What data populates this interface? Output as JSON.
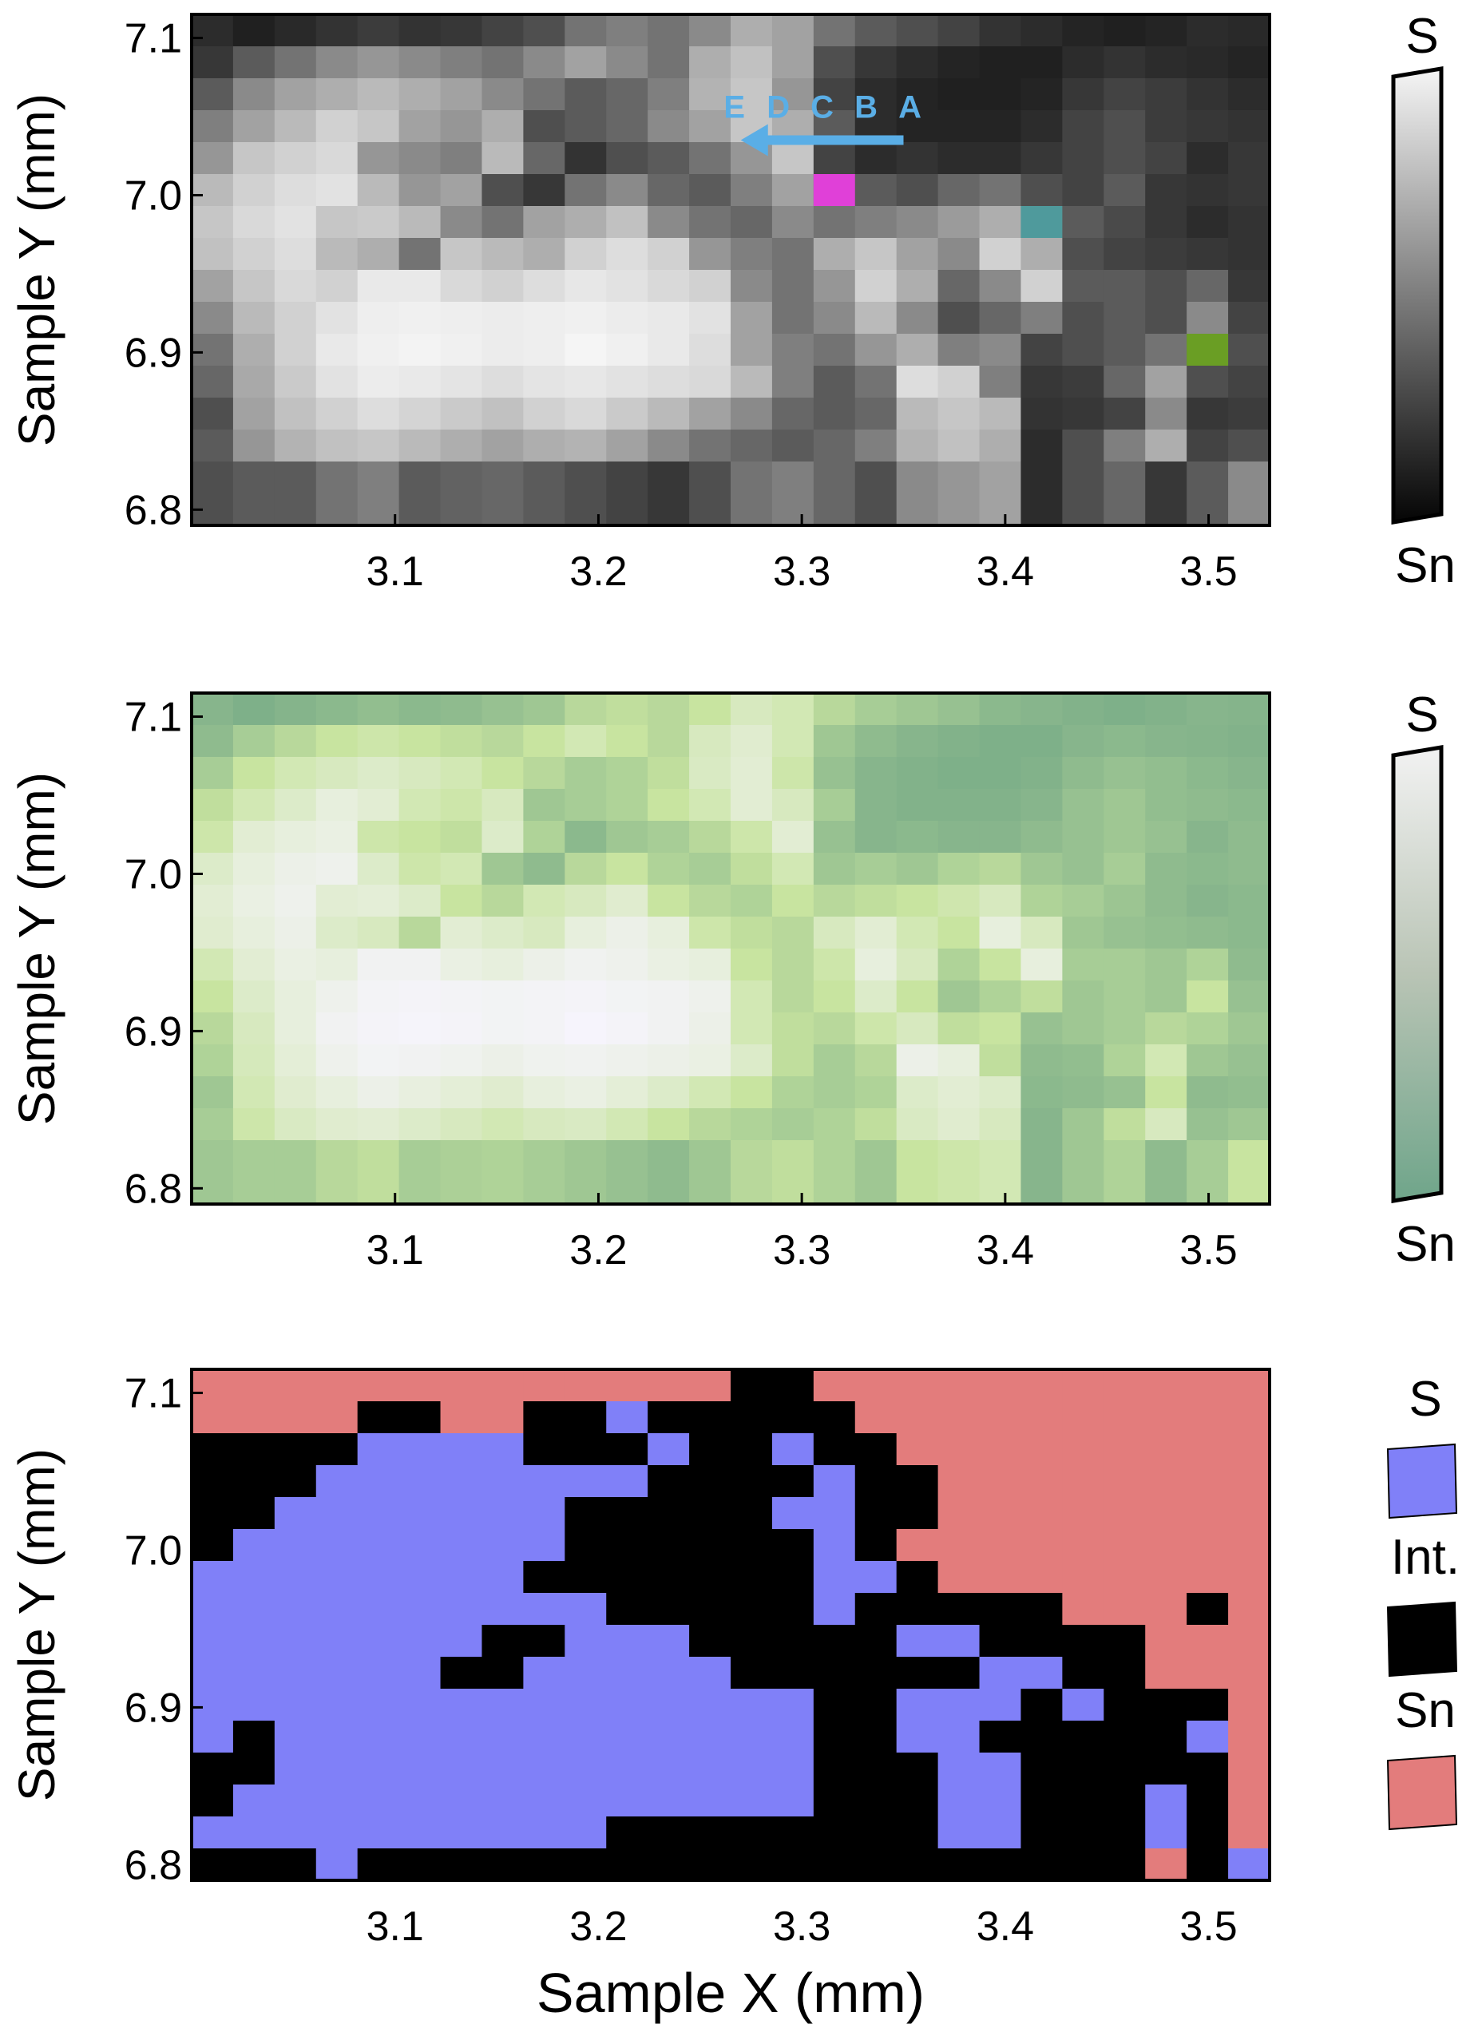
{
  "chart_data": [
    {
      "type": "heatmap",
      "title": "",
      "xlabel": "",
      "ylabel": "Sample Y (mm)",
      "xlim": [
        3.0,
        3.53
      ],
      "ylim": [
        6.79,
        7.115
      ],
      "xticks": [
        "3.1",
        "3.2",
        "3.3",
        "3.4",
        "3.5"
      ],
      "yticks": [
        "7.1",
        "7.0",
        "6.9",
        "6.8"
      ],
      "grid": false,
      "colormap": "grayscale",
      "colorbar": {
        "top_label": "S",
        "bottom_label": "Sn",
        "top_color": "#f5f5f5",
        "bottom_color": "#050505"
      },
      "rows": 16,
      "cols": 26,
      "values": [
        [
          0.15,
          0.1,
          0.14,
          0.18,
          0.22,
          0.18,
          0.2,
          0.25,
          0.3,
          0.45,
          0.5,
          0.45,
          0.55,
          0.7,
          0.65,
          0.45,
          0.35,
          0.3,
          0.25,
          0.18,
          0.15,
          0.12,
          0.1,
          0.12,
          0.15,
          0.14
        ],
        [
          0.2,
          0.35,
          0.45,
          0.55,
          0.6,
          0.55,
          0.5,
          0.45,
          0.55,
          0.65,
          0.55,
          0.45,
          0.7,
          0.78,
          0.65,
          0.3,
          0.2,
          0.15,
          0.12,
          0.1,
          0.1,
          0.15,
          0.18,
          0.15,
          0.14,
          0.12
        ],
        [
          0.35,
          0.55,
          0.65,
          0.7,
          0.75,
          0.7,
          0.65,
          0.55,
          0.45,
          0.35,
          0.4,
          0.5,
          0.72,
          0.8,
          0.6,
          0.25,
          0.15,
          0.12,
          0.1,
          0.1,
          0.12,
          0.2,
          0.25,
          0.22,
          0.18,
          0.15
        ],
        [
          0.5,
          0.65,
          0.75,
          0.85,
          0.8,
          0.65,
          0.6,
          0.7,
          0.3,
          0.35,
          0.4,
          0.55,
          0.65,
          0.8,
          0.7,
          0.35,
          0.15,
          0.12,
          0.12,
          0.12,
          0.15,
          0.25,
          0.3,
          0.22,
          0.2,
          0.18
        ],
        [
          0.6,
          0.8,
          0.85,
          0.88,
          0.6,
          0.55,
          0.5,
          0.75,
          0.4,
          0.18,
          0.3,
          0.35,
          0.45,
          0.6,
          0.8,
          0.25,
          0.15,
          0.18,
          0.15,
          0.15,
          0.2,
          0.25,
          0.3,
          0.25,
          0.15,
          0.2
        ],
        [
          0.75,
          0.85,
          0.9,
          0.92,
          0.75,
          0.6,
          0.65,
          0.3,
          0.2,
          0.45,
          0.55,
          0.4,
          0.35,
          0.5,
          0.65,
          null,
          0.35,
          0.3,
          0.4,
          0.45,
          0.3,
          0.25,
          0.35,
          0.2,
          0.18,
          0.2
        ],
        [
          0.8,
          0.88,
          0.92,
          0.8,
          0.82,
          0.75,
          0.55,
          0.45,
          0.65,
          0.7,
          0.78,
          0.55,
          0.45,
          0.4,
          0.55,
          0.45,
          0.5,
          0.55,
          0.62,
          0.7,
          null,
          0.35,
          0.28,
          0.2,
          0.15,
          0.18
        ],
        [
          0.78,
          0.85,
          0.9,
          0.75,
          0.7,
          0.45,
          0.8,
          0.75,
          0.7,
          0.85,
          0.9,
          0.85,
          0.6,
          0.5,
          0.45,
          0.7,
          0.8,
          0.65,
          0.55,
          0.85,
          0.7,
          0.3,
          0.25,
          0.22,
          0.2,
          0.18
        ],
        [
          0.65,
          0.8,
          0.88,
          0.85,
          0.95,
          0.95,
          0.88,
          0.85,
          0.9,
          0.94,
          0.92,
          0.88,
          0.85,
          0.55,
          0.45,
          0.6,
          0.85,
          0.7,
          0.4,
          0.55,
          0.85,
          0.35,
          0.35,
          0.3,
          0.4,
          0.2
        ],
        [
          0.55,
          0.75,
          0.85,
          0.92,
          0.97,
          0.98,
          0.97,
          0.96,
          0.97,
          0.98,
          0.96,
          0.95,
          0.92,
          0.65,
          0.45,
          0.55,
          0.75,
          0.55,
          0.3,
          0.4,
          0.5,
          0.3,
          0.35,
          0.3,
          0.55,
          0.25
        ],
        [
          0.45,
          0.7,
          0.85,
          0.95,
          0.98,
          0.99,
          0.98,
          0.96,
          0.97,
          1.0,
          0.98,
          0.95,
          0.9,
          0.65,
          0.5,
          0.45,
          0.6,
          0.7,
          0.5,
          0.55,
          0.25,
          0.3,
          0.35,
          0.45,
          null,
          0.3
        ],
        [
          0.4,
          0.68,
          0.82,
          0.92,
          0.96,
          0.95,
          0.93,
          0.9,
          0.93,
          0.94,
          0.92,
          0.9,
          0.88,
          0.75,
          0.5,
          0.35,
          0.45,
          0.9,
          0.85,
          0.5,
          0.2,
          0.22,
          0.4,
          0.65,
          0.3,
          0.25
        ],
        [
          0.3,
          0.65,
          0.78,
          0.85,
          0.9,
          0.86,
          0.82,
          0.78,
          0.85,
          0.88,
          0.82,
          0.75,
          0.65,
          0.55,
          0.4,
          0.35,
          0.4,
          0.75,
          0.8,
          0.75,
          0.18,
          0.2,
          0.25,
          0.55,
          0.2,
          0.22
        ],
        [
          0.35,
          0.6,
          0.72,
          0.78,
          0.8,
          0.75,
          0.7,
          0.65,
          0.7,
          0.72,
          0.65,
          0.55,
          0.45,
          0.4,
          0.35,
          0.4,
          0.5,
          0.72,
          0.78,
          0.7,
          0.15,
          0.3,
          0.5,
          0.7,
          0.25,
          0.3
        ],
        [
          0.3,
          0.35,
          0.35,
          0.45,
          0.5,
          0.35,
          0.38,
          0.4,
          0.35,
          0.3,
          0.25,
          0.2,
          0.3,
          0.45,
          0.5,
          0.4,
          0.3,
          0.55,
          0.6,
          0.65,
          0.15,
          0.3,
          0.4,
          0.2,
          0.35,
          0.55
        ],
        [
          0.3,
          0.35,
          0.35,
          0.45,
          0.5,
          0.35,
          0.38,
          0.4,
          0.35,
          0.3,
          0.25,
          0.2,
          0.3,
          0.45,
          0.5,
          0.4,
          0.3,
          0.55,
          0.6,
          0.65,
          0.15,
          0.3,
          0.4,
          0.2,
          0.35,
          0.55
        ]
      ],
      "marked_pixels": [
        {
          "row": 5,
          "col": 15,
          "color": "#e040d8"
        },
        {
          "row": 6,
          "col": 20,
          "color": "#4f9a9c"
        },
        {
          "row": 10,
          "col": 24,
          "color": "#6a9e24"
        }
      ],
      "annotation": {
        "labels": [
          "E",
          "D",
          "C",
          "B",
          "A"
        ],
        "color": "#5aaee6",
        "arrow": "A to E",
        "arrow_from": [
          3.35,
          7.035
        ],
        "arrow_to": [
          3.27,
          7.035
        ]
      }
    },
    {
      "type": "heatmap",
      "title": "",
      "xlabel": "",
      "ylabel": "Sample Y (mm)",
      "xlim": [
        3.0,
        3.53
      ],
      "ylim": [
        6.79,
        7.115
      ],
      "xticks": [
        "3.1",
        "3.2",
        "3.3",
        "3.4",
        "3.5"
      ],
      "yticks": [
        "7.1",
        "7.0",
        "6.9",
        "6.8"
      ],
      "grid": false,
      "colormap": "green-tinted",
      "colorbar": {
        "top_label": "S",
        "bottom_label": "Sn",
        "top_color": "#f2f2f2",
        "bottom_color": "#6fa58a"
      },
      "rows": 16,
      "cols": 26,
      "values": [
        [
          0.15,
          0.1,
          0.14,
          0.18,
          0.22,
          0.18,
          0.2,
          0.25,
          0.3,
          0.45,
          0.5,
          0.45,
          0.55,
          0.7,
          0.65,
          0.45,
          0.35,
          0.3,
          0.25,
          0.18,
          0.15,
          0.12,
          0.1,
          0.12,
          0.15,
          0.14
        ],
        [
          0.2,
          0.35,
          0.45,
          0.55,
          0.6,
          0.55,
          0.5,
          0.45,
          0.55,
          0.65,
          0.55,
          0.45,
          0.7,
          0.78,
          0.65,
          0.3,
          0.2,
          0.15,
          0.12,
          0.1,
          0.1,
          0.15,
          0.18,
          0.15,
          0.14,
          0.12
        ],
        [
          0.35,
          0.55,
          0.65,
          0.7,
          0.75,
          0.7,
          0.65,
          0.55,
          0.45,
          0.35,
          0.4,
          0.5,
          0.72,
          0.8,
          0.6,
          0.25,
          0.15,
          0.12,
          0.1,
          0.1,
          0.12,
          0.2,
          0.25,
          0.22,
          0.18,
          0.15
        ],
        [
          0.5,
          0.65,
          0.75,
          0.85,
          0.8,
          0.65,
          0.6,
          0.7,
          0.3,
          0.35,
          0.4,
          0.55,
          0.65,
          0.8,
          0.7,
          0.35,
          0.15,
          0.12,
          0.12,
          0.12,
          0.15,
          0.25,
          0.3,
          0.22,
          0.2,
          0.18
        ],
        [
          0.6,
          0.8,
          0.85,
          0.88,
          0.6,
          0.55,
          0.5,
          0.75,
          0.4,
          0.18,
          0.3,
          0.35,
          0.45,
          0.6,
          0.8,
          0.25,
          0.15,
          0.18,
          0.15,
          0.15,
          0.2,
          0.25,
          0.3,
          0.25,
          0.15,
          0.2
        ],
        [
          0.75,
          0.85,
          0.9,
          0.92,
          0.75,
          0.6,
          0.65,
          0.3,
          0.2,
          0.45,
          0.55,
          0.4,
          0.35,
          0.5,
          0.65,
          0.3,
          0.35,
          0.3,
          0.4,
          0.45,
          0.3,
          0.25,
          0.35,
          0.2,
          0.18,
          0.2
        ],
        [
          0.8,
          0.88,
          0.92,
          0.8,
          0.82,
          0.75,
          0.55,
          0.45,
          0.65,
          0.7,
          0.78,
          0.55,
          0.45,
          0.4,
          0.55,
          0.45,
          0.5,
          0.55,
          0.62,
          0.7,
          0.4,
          0.35,
          0.28,
          0.2,
          0.15,
          0.18
        ],
        [
          0.78,
          0.85,
          0.9,
          0.75,
          0.7,
          0.45,
          0.8,
          0.75,
          0.7,
          0.85,
          0.9,
          0.85,
          0.6,
          0.5,
          0.45,
          0.7,
          0.8,
          0.65,
          0.55,
          0.85,
          0.7,
          0.3,
          0.25,
          0.22,
          0.2,
          0.18
        ],
        [
          0.65,
          0.8,
          0.88,
          0.85,
          0.95,
          0.95,
          0.88,
          0.85,
          0.9,
          0.94,
          0.92,
          0.88,
          0.85,
          0.55,
          0.45,
          0.6,
          0.85,
          0.7,
          0.4,
          0.55,
          0.85,
          0.35,
          0.35,
          0.3,
          0.4,
          0.2
        ],
        [
          0.55,
          0.75,
          0.85,
          0.92,
          0.97,
          0.98,
          0.97,
          0.96,
          0.97,
          0.98,
          0.96,
          0.95,
          0.92,
          0.65,
          0.45,
          0.55,
          0.75,
          0.55,
          0.3,
          0.4,
          0.5,
          0.3,
          0.35,
          0.3,
          0.55,
          0.25
        ],
        [
          0.45,
          0.7,
          0.85,
          0.95,
          0.98,
          0.99,
          0.98,
          0.96,
          0.97,
          1.0,
          0.98,
          0.95,
          0.9,
          0.65,
          0.5,
          0.45,
          0.6,
          0.7,
          0.5,
          0.55,
          0.25,
          0.3,
          0.35,
          0.45,
          0.4,
          0.3
        ],
        [
          0.4,
          0.68,
          0.82,
          0.92,
          0.96,
          0.95,
          0.93,
          0.9,
          0.93,
          0.94,
          0.92,
          0.9,
          0.88,
          0.75,
          0.5,
          0.35,
          0.45,
          0.9,
          0.85,
          0.5,
          0.2,
          0.22,
          0.4,
          0.65,
          0.3,
          0.25
        ],
        [
          0.3,
          0.65,
          0.78,
          0.85,
          0.9,
          0.86,
          0.82,
          0.78,
          0.85,
          0.88,
          0.82,
          0.75,
          0.65,
          0.55,
          0.4,
          0.35,
          0.4,
          0.75,
          0.8,
          0.75,
          0.18,
          0.2,
          0.25,
          0.55,
          0.2,
          0.22
        ],
        [
          0.35,
          0.6,
          0.72,
          0.78,
          0.8,
          0.75,
          0.7,
          0.65,
          0.7,
          0.72,
          0.65,
          0.55,
          0.45,
          0.4,
          0.35,
          0.4,
          0.5,
          0.72,
          0.78,
          0.7,
          0.15,
          0.3,
          0.5,
          0.7,
          0.25,
          0.3
        ],
        [
          0.3,
          0.35,
          0.35,
          0.45,
          0.5,
          0.35,
          0.38,
          0.4,
          0.35,
          0.3,
          0.25,
          0.2,
          0.3,
          0.45,
          0.5,
          0.4,
          0.3,
          0.55,
          0.6,
          0.65,
          0.15,
          0.3,
          0.4,
          0.2,
          0.35,
          0.55
        ],
        [
          0.3,
          0.35,
          0.35,
          0.45,
          0.5,
          0.35,
          0.38,
          0.4,
          0.35,
          0.3,
          0.25,
          0.2,
          0.3,
          0.45,
          0.5,
          0.4,
          0.3,
          0.55,
          0.6,
          0.65,
          0.15,
          0.3,
          0.4,
          0.2,
          0.35,
          0.55
        ]
      ]
    },
    {
      "type": "heatmap",
      "title": "",
      "xlabel": "Sample X (mm)",
      "ylabel": "Sample Y (mm)",
      "xlim": [
        3.0,
        3.53
      ],
      "ylim": [
        6.79,
        7.115
      ],
      "xticks": [
        "3.1",
        "3.2",
        "3.3",
        "3.4",
        "3.5"
      ],
      "yticks": [
        "7.1",
        "7.0",
        "6.9",
        "6.8"
      ],
      "grid": false,
      "colormap": "categorical",
      "legend": [
        {
          "label": "S",
          "code": "S",
          "color": "#8080f8"
        },
        {
          "label": "Int.",
          "code": "I",
          "color": "#000000"
        },
        {
          "label": "Sn",
          "code": "N",
          "color": "#e37c7c"
        }
      ],
      "rows": 16,
      "cols": 26,
      "classes": [
        "NNNNNNNNNNNNNIINNNNNNNNNNN",
        "NNNNIINNIISIIIIINNNNNNNNNN",
        "IIIISSSSIIISIISIINNNNNNNNN",
        "IIISSSSSSSSIIIISIINNNNNNNN",
        "IISSSSSSSIIIIISSIINNNNNNNN",
        "ISSSSSSSSIIIIIISINNNNNNNNN",
        "SSSSSSSSIIIIIIISSINNNNNNNN",
        "SSSSSSSSSSIIIIISIIIIINNNIN",
        "SSSSSSSIISSSIIIIISSIIIINNN",
        "SSSSSSIISSSSSIIIIIISSIINNN",
        "SSSSSSSSSSSSSSSIISSSISIIIN",
        "SISSSSSSSSSSSSSIISSIIIIISN",
        "IISSSSSSSSSSSSSIIISSIIIIIN",
        "ISSSSSSSSSSSSSSIIISSIIISIN",
        "SSSSSSSSSSIIIIIIIISSIIISIN",
        "IIISIIIIIIIIIIIIIIIIIIINIS"
      ]
    }
  ]
}
